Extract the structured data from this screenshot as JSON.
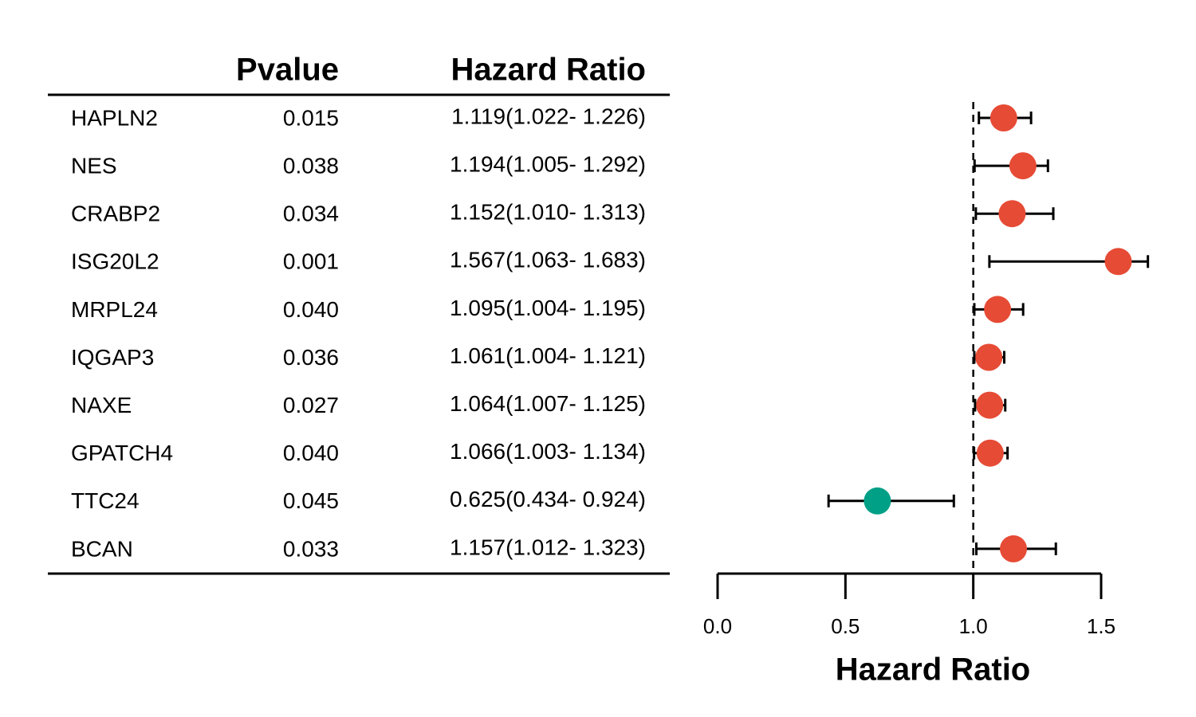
{
  "chart_data": {
    "type": "forest",
    "xlabel": "Hazard Ratio",
    "columns": [
      "Pvalue",
      "Hazard Ratio"
    ],
    "categories": [
      "HAPLN2",
      "NES",
      "CRABP2",
      "ISG20L2",
      "MRPL24",
      "IQGAP3",
      "NAXE",
      "GPATCH4",
      "TTC24",
      "BCAN"
    ],
    "pvalues": [
      "0.015",
      "0.038",
      "0.034",
      "0.001",
      "0.040",
      "0.036",
      "0.027",
      "0.040",
      "0.045",
      "0.033"
    ],
    "series": [
      {
        "values": [
          1.119,
          1.194,
          1.152,
          1.567,
          1.095,
          1.061,
          1.064,
          1.066,
          0.625,
          1.157
        ],
        "lower": [
          1.022,
          1.005,
          1.01,
          1.063,
          1.004,
          1.004,
          1.007,
          1.003,
          0.434,
          1.012
        ],
        "upper": [
          1.226,
          1.292,
          1.313,
          1.683,
          1.195,
          1.121,
          1.125,
          1.134,
          0.924,
          1.323
        ],
        "value_labels": [
          "1.119(1.022- 1.226)",
          "1.194(1.005- 1.292)",
          "1.152(1.010- 1.313)",
          "1.567(1.063- 1.683)",
          "1.095(1.004- 1.195)",
          "1.061(1.004- 1.121)",
          "1.064(1.007- 1.125)",
          "1.066(1.003- 1.134)",
          "0.625(0.434- 0.924)",
          "1.157(1.012- 1.323)"
        ],
        "colors": [
          "#E64B35",
          "#E64B35",
          "#E64B35",
          "#E64B35",
          "#E64B35",
          "#E64B35",
          "#E64B35",
          "#E64B35",
          "#00A087",
          "#E64B35"
        ]
      }
    ],
    "xlim": [
      0,
      1.5
    ],
    "xticks": [
      {
        "value": 0,
        "label": "0.0"
      },
      {
        "value": 0.5,
        "label": "0.5"
      },
      {
        "value": 1,
        "label": "1.0"
      },
      {
        "value": 1.5,
        "label": "1.5"
      }
    ],
    "ref_line": 1
  }
}
